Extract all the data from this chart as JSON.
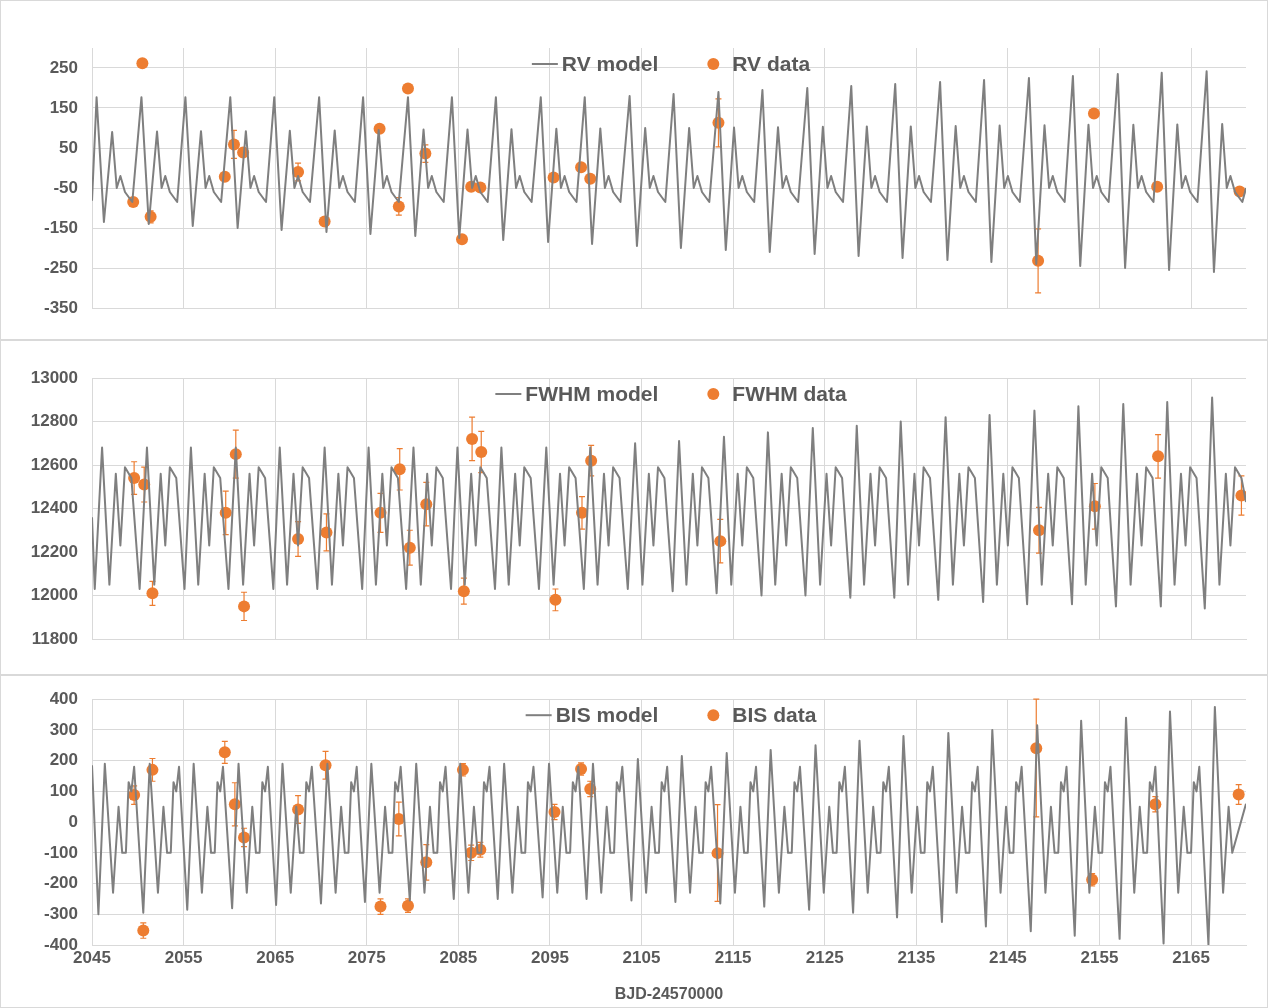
{
  "chart_data": [
    {
      "type": "line",
      "xlim": [
        2045,
        2171
      ],
      "xticks": [
        2045,
        2055,
        2065,
        2075,
        2085,
        2095,
        2105,
        2115,
        2125,
        2135,
        2145,
        2155,
        2165
      ],
      "ylim": [
        -350,
        300
      ],
      "yticks": [
        -350,
        -250,
        -150,
        -50,
        50,
        150,
        250
      ],
      "grid": true,
      "legend": "top",
      "tick_labels": "y",
      "series": [
        {
          "name": "RV model",
          "type": "line",
          "marker": "none",
          "color": "#7f7f7f",
          "x": [
            2045,
            2045.5,
            2046.3,
            2047.2,
            2047.7,
            2048.1,
            2048.6,
            2049.4,
            2050.4,
            2051.2,
            2052.1,
            2052.6,
            2053.0,
            2053.5,
            2054.3,
            2055.2,
            2056.0,
            2056.9,
            2057.4,
            2057.8,
            2058.3,
            2059.1,
            2060.1,
            2060.9,
            2061.8,
            2062.3,
            2062.7,
            2063.2,
            2064.0,
            2064.9,
            2065.7,
            2066.6,
            2067.1,
            2067.5,
            2068.0,
            2068.8,
            2069.8,
            2070.6,
            2071.5,
            2072.0,
            2072.4,
            2072.9,
            2073.7,
            2074.6,
            2075.4,
            2076.3,
            2076.8,
            2077.2,
            2077.7,
            2078.5,
            2079.5,
            2080.3,
            2081.2,
            2081.7,
            2082.1,
            2082.6,
            2083.4,
            2084.3,
            2085.1,
            2086.0,
            2086.5,
            2086.9,
            2087.4,
            2088.2,
            2089.1,
            2089.9,
            2090.8,
            2091.3,
            2091.7,
            2092.2,
            2093.0,
            2094.0,
            2094.8,
            2095.7,
            2096.2,
            2096.6,
            2097.1,
            2097.9,
            2098.8,
            2099.6,
            2100.5,
            2101.0,
            2101.4,
            2101.9,
            2102.7,
            2103.7,
            2104.5,
            2105.4,
            2105.9,
            2106.3,
            2106.8,
            2107.6,
            2108.5,
            2109.3,
            2110.2,
            2110.7,
            2111.1,
            2111.6,
            2112.4,
            2113.4,
            2114.2,
            2115.1,
            2115.6,
            2116.0,
            2116.5,
            2117.3,
            2118.2,
            2119.0,
            2119.9,
            2120.4,
            2120.8,
            2121.3,
            2122.1,
            2123.1,
            2123.9,
            2124.8,
            2125.3,
            2125.7,
            2126.2,
            2127.0,
            2127.9,
            2128.7,
            2129.6,
            2130.1,
            2130.5,
            2131.0,
            2131.8,
            2132.7,
            2133.5,
            2134.4,
            2134.9,
            2135.3,
            2135.8,
            2136.6,
            2137.6,
            2138.4,
            2139.3,
            2139.8,
            2140.2,
            2140.7,
            2141.5,
            2142.4,
            2143.2,
            2144.1,
            2144.6,
            2145.0,
            2145.5,
            2146.3,
            2147.3,
            2148.1,
            2149.0,
            2149.5,
            2149.9,
            2150.4,
            2151.2,
            2152.1,
            2152.9,
            2153.8,
            2154.3,
            2154.7,
            2155.2,
            2156.0,
            2157.0,
            2157.8,
            2158.7,
            2159.2,
            2159.6,
            2160.1,
            2160.9,
            2161.8,
            2162.6,
            2163.5,
            2164.0,
            2164.4,
            2164.9,
            2165.7,
            2166.7,
            2167.5,
            2168.4,
            2168.9,
            2169.3,
            2169.8,
            2170.6,
            2171
          ],
          "values": [
            -82,
            177,
            -135,
            90,
            -50,
            -20,
            -60,
            -85,
            177,
            -140,
            91,
            -50,
            -20,
            -60,
            -85,
            177,
            -145,
            92,
            -50,
            -20,
            -60,
            -85,
            177,
            -150,
            92,
            -50,
            -20,
            -60,
            -85,
            177,
            -155,
            93,
            -50,
            -20,
            -60,
            -85,
            177,
            -160,
            94,
            -50,
            -20,
            -60,
            -85,
            177,
            -165,
            95,
            -50,
            -20,
            -60,
            -85,
            177,
            -170,
            96,
            -50,
            -20,
            -60,
            -85,
            177,
            -175,
            96,
            -50,
            -20,
            -60,
            -85,
            177,
            -180,
            97,
            -50,
            -20,
            -60,
            -85,
            177,
            -185,
            98,
            -50,
            -20,
            -60,
            -85,
            177,
            -190,
            99,
            -50,
            -20,
            -60,
            -85,
            180,
            -195,
            100,
            -50,
            -20,
            -60,
            -85,
            185,
            -200,
            100,
            -50,
            -20,
            -60,
            -85,
            190,
            -205,
            101,
            -50,
            -20,
            -60,
            -85,
            195,
            -210,
            102,
            -50,
            -20,
            -60,
            -85,
            200,
            -215,
            103,
            -50,
            -20,
            -60,
            -85,
            205,
            -220,
            104,
            -50,
            -20,
            -60,
            -85,
            210,
            -225,
            104,
            -50,
            -20,
            -60,
            -85,
            215,
            -230,
            105,
            -50,
            -20,
            -60,
            -85,
            220,
            -235,
            106,
            -50,
            -20,
            -60,
            -85,
            225,
            -240,
            107,
            -50,
            -20,
            -60,
            -85,
            230,
            -245,
            108,
            -50,
            -20,
            -60,
            -85,
            235,
            -250,
            108,
            -50,
            -20,
            -60,
            -85,
            238,
            -255,
            109,
            -50,
            -20,
            -60,
            -85,
            242,
            -260,
            110,
            -50,
            -20,
            -60,
            -85,
            -50
          ]
        },
        {
          "name": "RV data",
          "type": "scatter",
          "marker": "circle",
          "color": "#ed7d31",
          "x": [
            2049.5,
            2050.5,
            2051.4,
            2059.5,
            2060.5,
            2061.5,
            2067.5,
            2070.4,
            2076.4,
            2078.5,
            2079.5,
            2081.4,
            2085.4,
            2086.4,
            2087.4,
            2095.4,
            2098.4,
            2099.4,
            2113.4,
            2148.3,
            2154.4,
            2161.3,
            2170.3
          ],
          "values": [
            -85,
            262,
            -122,
            -22,
            59,
            39,
            -10,
            -134,
            98,
            -96,
            199,
            36,
            -178,
            -47,
            -49,
            -24,
            2,
            -27,
            113,
            -232,
            136,
            -47,
            -59
          ],
          "errors": [
            null,
            null,
            15,
            null,
            35,
            null,
            22,
            null,
            null,
            22,
            null,
            22,
            null,
            null,
            null,
            null,
            null,
            null,
            60,
            80,
            null,
            null,
            null
          ]
        }
      ]
    },
    {
      "type": "line",
      "xlim": [
        2045,
        2171
      ],
      "xticks": [
        2045,
        2055,
        2065,
        2075,
        2085,
        2095,
        2105,
        2115,
        2125,
        2135,
        2145,
        2155,
        2165
      ],
      "ylim": [
        11800,
        13000
      ],
      "yticks": [
        11800,
        12000,
        12200,
        12400,
        12600,
        12800,
        13000
      ],
      "grid": true,
      "legend": "top",
      "tick_labels": "y",
      "series": [
        {
          "name": "FWHM model",
          "type": "line",
          "marker": "none",
          "color": "#7f7f7f",
          "x": [
            2045,
            2045.3,
            2046.1,
            2046.9,
            2047.6,
            2048.1,
            2048.6,
            2049.3,
            2050.2,
            2051.0,
            2051.8,
            2052.5,
            2053.0,
            2053.5,
            2054.2,
            2055.1,
            2055.8,
            2056.6,
            2057.3,
            2057.8,
            2058.3,
            2059.0,
            2059.9,
            2060.7,
            2061.5,
            2062.2,
            2062.7,
            2063.2,
            2063.9,
            2064.8,
            2065.5,
            2066.3,
            2067.0,
            2067.5,
            2068.0,
            2068.7,
            2069.6,
            2070.4,
            2071.2,
            2071.9,
            2072.4,
            2072.9,
            2073.6,
            2074.5,
            2075.2,
            2076.0,
            2076.7,
            2077.2,
            2077.7,
            2078.4,
            2079.3,
            2080.1,
            2080.9,
            2081.6,
            2082.1,
            2082.6,
            2083.3,
            2084.2,
            2084.9,
            2085.7,
            2086.4,
            2086.9,
            2087.4,
            2088.1,
            2089.0,
            2089.7,
            2090.5,
            2091.2,
            2091.7,
            2092.2,
            2092.9,
            2093.8,
            2094.6,
            2095.4,
            2096.1,
            2096.6,
            2097.1,
            2097.8,
            2098.7,
            2099.4,
            2100.2,
            2100.9,
            2101.4,
            2101.9,
            2102.6,
            2103.5,
            2104.3,
            2105.1,
            2105.8,
            2106.3,
            2106.8,
            2107.5,
            2108.4,
            2109.1,
            2109.9,
            2110.6,
            2111.1,
            2111.6,
            2112.3,
            2113.2,
            2114.0,
            2114.8,
            2115.5,
            2116.0,
            2116.5,
            2117.2,
            2118.1,
            2118.8,
            2119.6,
            2120.3,
            2120.8,
            2121.3,
            2122.0,
            2122.9,
            2123.7,
            2124.5,
            2125.2,
            2125.7,
            2126.2,
            2126.9,
            2127.8,
            2128.5,
            2129.3,
            2130.0,
            2130.5,
            2131.0,
            2131.7,
            2132.6,
            2133.3,
            2134.1,
            2134.8,
            2135.3,
            2135.8,
            2136.5,
            2137.4,
            2138.2,
            2139.0,
            2139.7,
            2140.2,
            2140.7,
            2141.4,
            2142.3,
            2143.0,
            2143.8,
            2144.5,
            2145.0,
            2145.5,
            2146.2,
            2147.1,
            2147.9,
            2148.7,
            2149.4,
            2149.9,
            2150.4,
            2151.1,
            2152.0,
            2152.7,
            2153.5,
            2154.2,
            2154.7,
            2155.2,
            2155.9,
            2156.8,
            2157.6,
            2158.4,
            2159.1,
            2159.6,
            2160.1,
            2160.8,
            2161.7,
            2162.4,
            2163.2,
            2163.9,
            2164.4,
            2164.9,
            2165.6,
            2166.5,
            2167.3,
            2168.1,
            2168.8,
            2169.3,
            2169.8,
            2170.5,
            2171
          ],
          "values": [
            12360,
            12030,
            12680,
            12050,
            12560,
            12230,
            12590,
            12540,
            12030,
            12680,
            12050,
            12560,
            12230,
            12590,
            12540,
            12030,
            12680,
            12050,
            12560,
            12230,
            12590,
            12540,
            12030,
            12680,
            12050,
            12560,
            12230,
            12590,
            12540,
            12030,
            12680,
            12050,
            12560,
            12230,
            12590,
            12540,
            12030,
            12680,
            12050,
            12560,
            12230,
            12590,
            12540,
            12030,
            12680,
            12050,
            12560,
            12230,
            12590,
            12540,
            12030,
            12680,
            12050,
            12560,
            12230,
            12590,
            12540,
            12030,
            12680,
            12050,
            12560,
            12230,
            12590,
            12540,
            12030,
            12680,
            12050,
            12560,
            12230,
            12590,
            12540,
            12030,
            12680,
            12050,
            12560,
            12230,
            12590,
            12540,
            12030,
            12680,
            12050,
            12560,
            12230,
            12590,
            12540,
            12030,
            12700,
            12050,
            12560,
            12230,
            12590,
            12540,
            12020,
            12710,
            12050,
            12560,
            12230,
            12590,
            12540,
            12010,
            12730,
            12050,
            12560,
            12230,
            12590,
            12540,
            12000,
            12750,
            12050,
            12560,
            12230,
            12590,
            12540,
            12000,
            12770,
            12050,
            12560,
            12230,
            12590,
            12540,
            11990,
            12780,
            12050,
            12560,
            12230,
            12590,
            12540,
            11990,
            12800,
            12050,
            12560,
            12230,
            12590,
            12540,
            11980,
            12820,
            12050,
            12560,
            12230,
            12590,
            12540,
            11970,
            12830,
            12050,
            12560,
            12230,
            12590,
            12540,
            11960,
            12850,
            12050,
            12560,
            12230,
            12590,
            12540,
            11960,
            12870,
            12050,
            12560,
            12230,
            12590,
            12540,
            11950,
            12880,
            12050,
            12560,
            12230,
            12590,
            12540,
            11950,
            12890,
            12050,
            12560,
            12230,
            12590,
            12540,
            11940,
            12910,
            12050,
            12560,
            12230,
            12590,
            12540,
            12430
          ]
        },
        {
          "name": "FWHM data",
          "type": "scatter",
          "marker": "circle",
          "color": "#ed7d31",
          "x": [
            2049.6,
            2050.7,
            2051.6,
            2059.6,
            2060.7,
            2061.6,
            2067.5,
            2070.6,
            2076.5,
            2078.6,
            2079.7,
            2081.5,
            2085.6,
            2086.5,
            2087.5,
            2095.6,
            2098.5,
            2099.5,
            2113.6,
            2148.4,
            2154.5,
            2161.4,
            2170.5
          ],
          "values": [
            12540,
            12510,
            12010,
            12380,
            12650,
            11950,
            12260,
            12290,
            12380,
            12580,
            12220,
            12420,
            12020,
            12720,
            12660,
            11980,
            12380,
            12620,
            12250,
            12300,
            12410,
            12640,
            12460
          ],
          "errors": [
            75,
            80,
            55,
            100,
            110,
            65,
            80,
            85,
            90,
            95,
            80,
            100,
            60,
            100,
            95,
            50,
            75,
            70,
            100,
            105,
            105,
            100,
            90
          ]
        }
      ]
    },
    {
      "type": "line",
      "xlim": [
        2045,
        2171
      ],
      "xticks": [
        2045,
        2055,
        2065,
        2075,
        2085,
        2095,
        2105,
        2115,
        2125,
        2135,
        2145,
        2155,
        2165
      ],
      "ylim": [
        -400,
        400
      ],
      "yticks": [
        -400,
        -300,
        -200,
        -100,
        0,
        100,
        200,
        300,
        400
      ],
      "grid": true,
      "legend": "top",
      "xlabel": "BJD-24570000",
      "series": [
        {
          "name": "BIS model",
          "type": "line",
          "marker": "none",
          "color": "#7f7f7f",
          "x": [
            2045,
            2045.7,
            2046.4,
            2047.3,
            2047.9,
            2048.3,
            2048.7,
            2049.0,
            2049.3,
            2049.6,
            2050.6,
            2051.3,
            2052.2,
            2052.8,
            2053.2,
            2053.6,
            2053.9,
            2054.2,
            2054.5,
            2055.4,
            2056.1,
            2057.0,
            2057.6,
            2058.0,
            2058.4,
            2058.7,
            2059.0,
            2059.3,
            2060.3,
            2061.0,
            2061.9,
            2062.5,
            2062.9,
            2063.3,
            2063.6,
            2063.9,
            2064.2,
            2065.1,
            2065.8,
            2066.7,
            2067.3,
            2067.7,
            2068.1,
            2068.4,
            2068.7,
            2069.0,
            2070.0,
            2070.7,
            2071.6,
            2072.2,
            2072.6,
            2073.0,
            2073.3,
            2073.6,
            2073.9,
            2074.8,
            2075.5,
            2076.4,
            2077.0,
            2077.4,
            2077.8,
            2078.1,
            2078.4,
            2078.7,
            2079.7,
            2080.4,
            2081.3,
            2081.9,
            2082.3,
            2082.7,
            2083.0,
            2083.3,
            2083.6,
            2084.5,
            2085.2,
            2086.1,
            2086.7,
            2087.1,
            2087.5,
            2087.8,
            2088.1,
            2088.4,
            2089.3,
            2090.0,
            2090.9,
            2091.5,
            2091.9,
            2092.3,
            2092.6,
            2092.9,
            2093.2,
            2094.2,
            2094.9,
            2095.8,
            2096.4,
            2096.8,
            2097.2,
            2097.5,
            2097.8,
            2098.1,
            2099.0,
            2099.7,
            2100.6,
            2101.2,
            2101.6,
            2102.0,
            2102.3,
            2102.6,
            2102.9,
            2103.9,
            2104.6,
            2105.5,
            2106.1,
            2106.5,
            2106.9,
            2107.2,
            2107.5,
            2107.8,
            2108.7,
            2109.4,
            2110.3,
            2110.9,
            2111.3,
            2111.7,
            2112.0,
            2112.3,
            2112.6,
            2113.6,
            2114.3,
            2115.2,
            2115.8,
            2116.2,
            2116.6,
            2116.9,
            2117.2,
            2117.5,
            2118.4,
            2119.1,
            2120.0,
            2120.6,
            2121.0,
            2121.4,
            2121.7,
            2122.0,
            2122.3,
            2123.3,
            2124.0,
            2124.9,
            2125.5,
            2125.9,
            2126.3,
            2126.6,
            2126.9,
            2127.2,
            2128.1,
            2128.8,
            2129.7,
            2130.3,
            2130.7,
            2131.1,
            2131.4,
            2131.7,
            2132.0,
            2132.9,
            2133.6,
            2134.5,
            2135.1,
            2135.5,
            2135.9,
            2136.2,
            2136.5,
            2136.8,
            2137.8,
            2138.5,
            2139.4,
            2140.0,
            2140.4,
            2140.8,
            2141.1,
            2141.4,
            2141.7,
            2142.6,
            2143.3,
            2144.2,
            2144.8,
            2145.2,
            2145.6,
            2145.9,
            2146.2,
            2146.5,
            2147.5,
            2148.2,
            2149.1,
            2149.7,
            2150.1,
            2150.5,
            2150.8,
            2151.1,
            2151.4,
            2152.3,
            2153.0,
            2153.9,
            2154.5,
            2154.9,
            2155.3,
            2155.6,
            2155.9,
            2156.2,
            2157.2,
            2157.9,
            2158.8,
            2159.4,
            2159.8,
            2160.2,
            2160.5,
            2160.8,
            2161.1,
            2162.0,
            2162.7,
            2163.6,
            2164.2,
            2164.6,
            2165.0,
            2165.3,
            2165.6,
            2165.9,
            2166.9,
            2167.6,
            2168.5,
            2169.1,
            2169.5,
            2171
          ],
          "values": [
            185,
            -300,
            190,
            -230,
            50,
            -100,
            -100,
            130,
            100,
            180,
            -295,
            190,
            -230,
            50,
            -100,
            -100,
            130,
            100,
            180,
            -285,
            190,
            -230,
            50,
            -100,
            -100,
            130,
            100,
            180,
            -280,
            190,
            -230,
            50,
            -100,
            -100,
            130,
            100,
            180,
            -270,
            190,
            -230,
            50,
            -100,
            -100,
            130,
            100,
            180,
            -265,
            190,
            -230,
            50,
            -100,
            -100,
            130,
            100,
            180,
            -260,
            190,
            -230,
            50,
            -100,
            -100,
            130,
            100,
            180,
            -255,
            190,
            -230,
            50,
            -100,
            -100,
            130,
            100,
            180,
            -250,
            190,
            -230,
            50,
            -100,
            -100,
            130,
            100,
            180,
            -250,
            190,
            -230,
            50,
            -100,
            -100,
            130,
            100,
            180,
            -245,
            190,
            -230,
            50,
            -100,
            -100,
            130,
            100,
            180,
            -250,
            190,
            -230,
            50,
            -100,
            -100,
            130,
            100,
            180,
            -255,
            205,
            -230,
            50,
            -100,
            -100,
            130,
            100,
            180,
            -260,
            215,
            -230,
            50,
            -100,
            -100,
            130,
            100,
            180,
            -265,
            225,
            -230,
            50,
            -100,
            -100,
            130,
            100,
            180,
            -275,
            235,
            -230,
            50,
            -100,
            -100,
            130,
            100,
            180,
            -285,
            250,
            -230,
            50,
            -100,
            -100,
            130,
            100,
            180,
            -295,
            265,
            -230,
            50,
            -100,
            -100,
            130,
            100,
            180,
            -310,
            280,
            -230,
            50,
            -100,
            -100,
            130,
            100,
            180,
            -325,
            290,
            -230,
            50,
            -100,
            -100,
            130,
            100,
            180,
            -340,
            300,
            -230,
            50,
            -100,
            -100,
            130,
            100,
            180,
            -355,
            315,
            -230,
            50,
            -100,
            -100,
            130,
            100,
            180,
            -370,
            330,
            -230,
            50,
            -100,
            -100,
            130,
            100,
            180,
            -380,
            340,
            -230,
            50,
            -100,
            -100,
            130,
            100,
            180,
            -395,
            360,
            -230,
            50,
            -100,
            -100,
            130,
            100,
            180,
            -400,
            375,
            -230,
            50,
            -100,
            60
          ]
        },
        {
          "name": "BIS data",
          "type": "scatter",
          "marker": "circle",
          "color": "#ed7d31",
          "x": [
            2049.6,
            2050.6,
            2051.6,
            2059.5,
            2060.6,
            2061.6,
            2067.5,
            2070.5,
            2076.5,
            2078.5,
            2079.5,
            2081.5,
            2085.5,
            2086.4,
            2087.4,
            2095.5,
            2098.4,
            2099.4,
            2113.3,
            2148.1,
            2154.2,
            2161.1,
            2170.2
          ],
          "values": [
            88,
            -353,
            170,
            227,
            58,
            -50,
            41,
            185,
            -275,
            10,
            -272,
            -131,
            170,
            -100,
            -90,
            33,
            173,
            108,
            -101,
            240,
            -188,
            58,
            90
          ],
          "errors": [
            30,
            25,
            37,
            36,
            70,
            30,
            45,
            45,
            25,
            55,
            22,
            58,
            20,
            25,
            24,
            25,
            20,
            25,
            [
              -258,
              57
            ],
            [
              17,
              400
            ],
            20,
            25,
            32
          ]
        }
      ]
    }
  ]
}
